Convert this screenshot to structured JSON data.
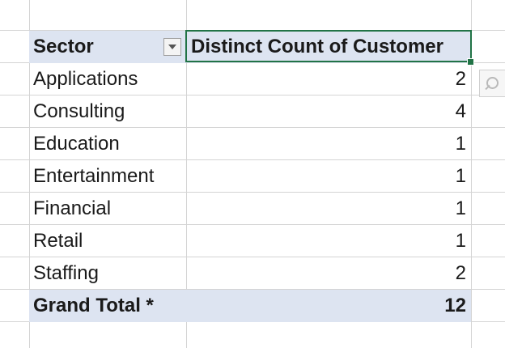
{
  "pivot": {
    "header": {
      "sector": "Sector",
      "count": "Distinct Count of Customer"
    },
    "rows": [
      {
        "sector": "Applications",
        "count": "2"
      },
      {
        "sector": "Consulting",
        "count": "4"
      },
      {
        "sector": "Education",
        "count": "1"
      },
      {
        "sector": "Entertainment",
        "count": "1"
      },
      {
        "sector": "Financial",
        "count": "1"
      },
      {
        "sector": "Retail",
        "count": "1"
      },
      {
        "sector": "Staffing",
        "count": "2"
      }
    ],
    "total": {
      "label": "Grand Total *",
      "count": "12"
    }
  },
  "icons": {
    "filter": "dropdown-arrow-icon",
    "quick_analysis": "magnifier-icon"
  },
  "colors": {
    "header_fill": "#dde4f1",
    "selection_border": "#217346",
    "gridline": "#d4d4d4"
  }
}
